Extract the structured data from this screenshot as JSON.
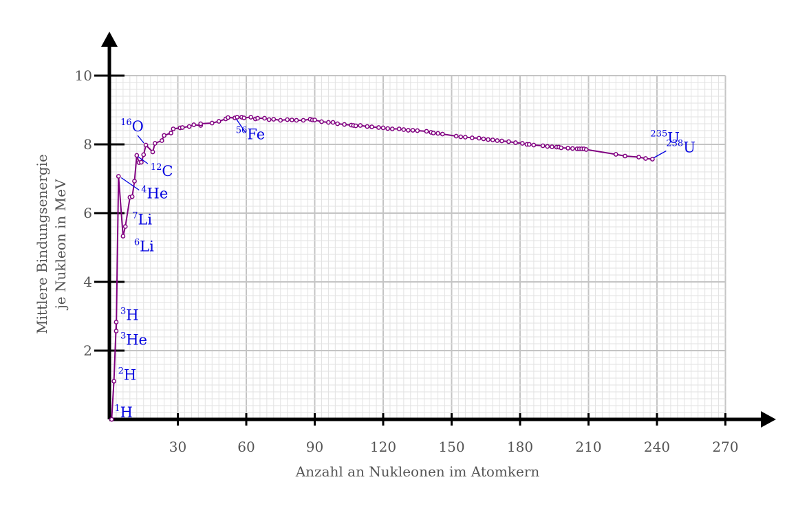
{
  "chart_data": {
    "type": "line",
    "xlabel": "Anzahl an Nukleonen im Atomkern",
    "ylabel_line1": "Mittlere Bindungsenergie",
    "ylabel_line2": "je Nukleon  in MeV",
    "xlim": [
      0,
      280
    ],
    "ylim": [
      0,
      10.7
    ],
    "xticks": [
      30,
      60,
      90,
      120,
      150,
      180,
      210,
      240,
      270
    ],
    "xtick_labels": [
      "30",
      "60",
      "90",
      "120",
      "150",
      "180",
      "210",
      "240",
      "270"
    ],
    "yticks": [
      2,
      4,
      6,
      8,
      10
    ],
    "ytick_labels": [
      "2",
      "4",
      "6",
      "8",
      "10"
    ],
    "grid": true,
    "colors": {
      "series": "#800080",
      "labels": "#0000e0",
      "grid": "#cccccc",
      "axis": "#000000"
    },
    "series": [
      {
        "x": [
          1,
          2,
          3,
          3,
          4,
          6,
          7,
          9,
          10,
          11,
          12,
          13,
          14,
          15,
          16,
          19,
          20,
          23,
          24,
          27,
          28,
          31,
          32,
          35,
          37,
          40,
          40,
          45,
          48,
          51,
          52,
          55,
          56,
          58,
          59,
          62,
          64,
          65,
          68,
          70,
          72,
          75,
          78,
          80,
          82,
          85,
          88,
          89,
          90,
          93,
          96,
          98,
          100,
          103,
          106,
          107,
          108,
          110,
          113,
          115,
          118,
          120,
          122,
          124,
          127,
          129,
          131,
          133,
          135,
          139,
          141,
          142,
          144,
          146,
          152,
          154,
          156,
          159,
          162,
          164,
          166,
          168,
          170,
          172,
          175,
          178,
          181,
          183,
          184,
          186,
          190,
          192,
          194,
          196,
          197,
          198,
          201,
          203,
          205,
          206,
          207,
          208,
          209,
          222,
          226,
          232,
          235,
          238
        ],
        "y": [
          0,
          1.11,
          2.83,
          2.57,
          7.07,
          5.33,
          5.61,
          6.46,
          6.48,
          6.93,
          7.68,
          7.47,
          7.48,
          7.7,
          7.98,
          7.78,
          8.03,
          8.11,
          8.26,
          8.33,
          8.45,
          8.48,
          8.49,
          8.52,
          8.57,
          8.55,
          8.6,
          8.62,
          8.67,
          8.74,
          8.78,
          8.77,
          8.79,
          8.79,
          8.77,
          8.79,
          8.74,
          8.76,
          8.76,
          8.72,
          8.73,
          8.7,
          8.72,
          8.71,
          8.7,
          8.7,
          8.73,
          8.71,
          8.71,
          8.66,
          8.64,
          8.64,
          8.6,
          8.58,
          8.56,
          8.55,
          8.54,
          8.55,
          8.52,
          8.51,
          8.49,
          8.48,
          8.46,
          8.45,
          8.45,
          8.43,
          8.41,
          8.41,
          8.4,
          8.38,
          8.35,
          8.33,
          8.32,
          8.3,
          8.24,
          8.22,
          8.21,
          8.19,
          8.18,
          8.16,
          8.14,
          8.13,
          8.11,
          8.1,
          8.08,
          8.05,
          8.03,
          8.0,
          8.0,
          7.98,
          7.96,
          7.94,
          7.93,
          7.92,
          7.92,
          7.9,
          7.89,
          7.88,
          7.87,
          7.87,
          7.87,
          7.87,
          7.85,
          7.71,
          7.66,
          7.63,
          7.59,
          7.57
        ]
      }
    ],
    "annotations": [
      {
        "sup": "1",
        "el": "H",
        "x": 1,
        "y": 0.0
      },
      {
        "sup": "2",
        "el": "H",
        "x": 2,
        "y": 1.11
      },
      {
        "sup": "3",
        "el": "H",
        "x": 3,
        "y": 2.83
      },
      {
        "sup": "3",
        "el": "He",
        "x": 3,
        "y": 2.57
      },
      {
        "sup": "4",
        "el": "He",
        "x": 4,
        "y": 7.07
      },
      {
        "sup": "6",
        "el": "Li",
        "x": 6,
        "y": 5.33
      },
      {
        "sup": "7",
        "el": "Li",
        "x": 7,
        "y": 5.61
      },
      {
        "sup": "12",
        "el": "C",
        "x": 12,
        "y": 7.68
      },
      {
        "sup": "16",
        "el": "O",
        "x": 16,
        "y": 7.98
      },
      {
        "sup": "56",
        "el": "Fe",
        "x": 56,
        "y": 8.79
      },
      {
        "sup": "235",
        "el": "U",
        "x": 235,
        "y": 7.59
      },
      {
        "sup": "238",
        "el": "U",
        "x": 238,
        "y": 7.57
      }
    ]
  }
}
